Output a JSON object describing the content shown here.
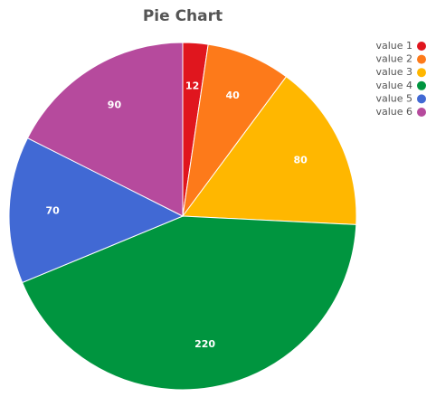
{
  "chart_data": {
    "type": "pie",
    "title": "Pie Chart",
    "categories": [
      "value 1",
      "value 2",
      "value 3",
      "value 4",
      "value 5",
      "value 6"
    ],
    "values": [
      12,
      40,
      80,
      220,
      70,
      90
    ],
    "colors": [
      "#e0161e",
      "#fd7a1a",
      "#ffb700",
      "#00953f",
      "#4169d4",
      "#b64a9d"
    ],
    "legend": "top-right"
  }
}
